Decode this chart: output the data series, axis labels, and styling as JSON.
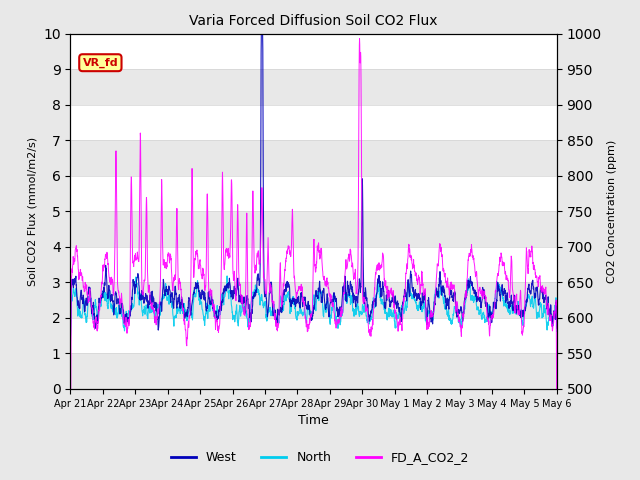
{
  "title": "Varia Forced Diffusion Soil CO2 Flux",
  "xlabel": "Time",
  "ylabel_left": "Soil CO2 Flux (mmol/m2/s)",
  "ylabel_right": "CO2 Concentration (ppm)",
  "ylim_left": [
    0.0,
    10.0
  ],
  "ylim_right": [
    500,
    1000
  ],
  "yticks_left": [
    0.0,
    1.0,
    2.0,
    3.0,
    4.0,
    5.0,
    6.0,
    7.0,
    8.0,
    9.0,
    10.0
  ],
  "yticks_right": [
    500,
    550,
    600,
    650,
    700,
    750,
    800,
    850,
    900,
    950,
    1000
  ],
  "xtick_labels": [
    "Apr 21",
    "Apr 22",
    "Apr 23",
    "Apr 24",
    "Apr 25",
    "Apr 26",
    "Apr 27",
    "Apr 28",
    "Apr 29",
    "Apr 30",
    "May 1",
    "May 2",
    "May 3",
    "May 4",
    "May 5",
    "May 6"
  ],
  "annotation_text": "VR_fd",
  "annotation_color": "#cc0000",
  "annotation_bg": "#ffff99",
  "line_west_color": "#0000bb",
  "line_north_color": "#00ccee",
  "line_co2_color": "#ff00ff",
  "background_color": "#e8e8e8",
  "plot_bg_color": "#ffffff",
  "band_color": "#e8e8e8",
  "legend_labels": [
    "West",
    "North",
    "FD_A_CO2_2"
  ],
  "seed": 12345,
  "n_days": 16,
  "samples_per_day": 144
}
